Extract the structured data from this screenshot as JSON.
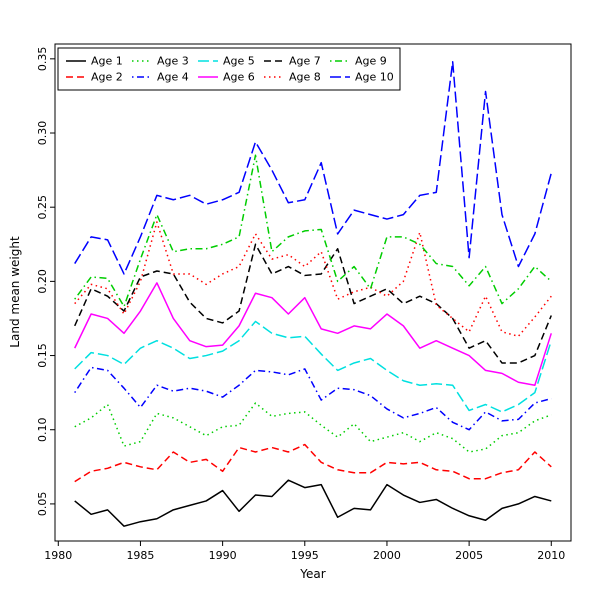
{
  "chart_data": {
    "type": "line",
    "title": "",
    "xlabel": "Year",
    "ylabel": "Land mean weight",
    "xlim": [
      1979.8,
      2011.2
    ],
    "ylim": [
      0.025,
      0.36
    ],
    "x_ticks": [
      1980,
      1985,
      1990,
      1995,
      2000,
      2005,
      2010
    ],
    "y_ticks": [
      0.05,
      0.1,
      0.15,
      0.2,
      0.25,
      0.3,
      0.35
    ],
    "grid": false,
    "legend": {
      "position": "top-left",
      "columns": 5
    },
    "x": [
      1981,
      1982,
      1983,
      1984,
      1985,
      1986,
      1987,
      1988,
      1989,
      1990,
      1991,
      1992,
      1993,
      1994,
      1995,
      1996,
      1997,
      1998,
      1999,
      2000,
      2001,
      2002,
      2003,
      2004,
      2005,
      2006,
      2007,
      2008,
      2009,
      2010
    ],
    "series": [
      {
        "name": "Age 1",
        "color": "#000000",
        "dash": "solid",
        "values": [
          0.052,
          0.043,
          0.046,
          0.035,
          0.038,
          0.04,
          0.046,
          0.049,
          0.052,
          0.059,
          0.045,
          0.056,
          0.055,
          0.066,
          0.061,
          0.063,
          0.041,
          0.047,
          0.046,
          0.063,
          0.056,
          0.051,
          0.053,
          0.047,
          0.042,
          0.039,
          0.047,
          0.05,
          0.055,
          0.052
        ]
      },
      {
        "name": "Age 2",
        "color": "#ff0000",
        "dash": "dashed",
        "values": [
          0.065,
          0.072,
          0.074,
          0.078,
          0.075,
          0.073,
          0.085,
          0.078,
          0.08,
          0.072,
          0.088,
          0.085,
          0.088,
          0.085,
          0.09,
          0.078,
          0.073,
          0.071,
          0.071,
          0.078,
          0.077,
          0.078,
          0.073,
          0.072,
          0.067,
          0.067,
          0.071,
          0.073,
          0.085,
          0.075
        ]
      },
      {
        "name": "Age 3",
        "color": "#00cd00",
        "dash": "dotted",
        "values": [
          0.102,
          0.108,
          0.117,
          0.089,
          0.092,
          0.111,
          0.108,
          0.102,
          0.096,
          0.102,
          0.103,
          0.118,
          0.109,
          0.111,
          0.112,
          0.103,
          0.095,
          0.104,
          0.092,
          0.095,
          0.098,
          0.092,
          0.098,
          0.094,
          0.085,
          0.087,
          0.096,
          0.098,
          0.106,
          0.11
        ]
      },
      {
        "name": "Age 4",
        "color": "#0000ff",
        "dash": "dotdash",
        "values": [
          0.125,
          0.142,
          0.14,
          0.128,
          0.115,
          0.13,
          0.126,
          0.128,
          0.126,
          0.122,
          0.13,
          0.14,
          0.139,
          0.137,
          0.141,
          0.12,
          0.128,
          0.127,
          0.123,
          0.114,
          0.108,
          0.111,
          0.115,
          0.105,
          0.1,
          0.112,
          0.106,
          0.107,
          0.118,
          0.121
        ]
      },
      {
        "name": "Age 5",
        "color": "#00e0e0",
        "dash": "longdash",
        "values": [
          0.141,
          0.152,
          0.15,
          0.144,
          0.155,
          0.16,
          0.155,
          0.148,
          0.15,
          0.153,
          0.16,
          0.173,
          0.165,
          0.162,
          0.163,
          0.151,
          0.14,
          0.145,
          0.148,
          0.14,
          0.133,
          0.13,
          0.131,
          0.13,
          0.113,
          0.117,
          0.112,
          0.117,
          0.125,
          0.16
        ]
      },
      {
        "name": "Age 6",
        "color": "#ff00ff",
        "dash": "solid",
        "values": [
          0.155,
          0.178,
          0.175,
          0.165,
          0.18,
          0.199,
          0.175,
          0.16,
          0.156,
          0.157,
          0.17,
          0.192,
          0.189,
          0.178,
          0.189,
          0.168,
          0.165,
          0.17,
          0.168,
          0.178,
          0.17,
          0.155,
          0.16,
          0.155,
          0.15,
          0.14,
          0.138,
          0.132,
          0.13,
          0.165
        ]
      },
      {
        "name": "Age 7",
        "color": "#000000",
        "dash": "dashed",
        "values": [
          0.17,
          0.195,
          0.19,
          0.18,
          0.203,
          0.207,
          0.205,
          0.186,
          0.175,
          0.172,
          0.18,
          0.225,
          0.205,
          0.21,
          0.204,
          0.205,
          0.222,
          0.185,
          0.19,
          0.195,
          0.185,
          0.19,
          0.185,
          0.175,
          0.155,
          0.16,
          0.145,
          0.145,
          0.15,
          0.177
        ]
      },
      {
        "name": "Age 8",
        "color": "#ff0000",
        "dash": "dotted",
        "values": [
          0.185,
          0.198,
          0.195,
          0.178,
          0.2,
          0.24,
          0.205,
          0.205,
          0.198,
          0.205,
          0.21,
          0.232,
          0.215,
          0.218,
          0.21,
          0.22,
          0.188,
          0.193,
          0.196,
          0.19,
          0.2,
          0.233,
          0.184,
          0.175,
          0.166,
          0.19,
          0.166,
          0.163,
          0.176,
          0.19
        ]
      },
      {
        "name": "Age 9",
        "color": "#00cd00",
        "dash": "dotdash",
        "values": [
          0.188,
          0.203,
          0.202,
          0.183,
          0.215,
          0.245,
          0.22,
          0.222,
          0.222,
          0.225,
          0.23,
          0.285,
          0.22,
          0.23,
          0.234,
          0.235,
          0.2,
          0.21,
          0.195,
          0.23,
          0.23,
          0.225,
          0.212,
          0.21,
          0.197,
          0.21,
          0.185,
          0.195,
          0.21,
          0.2
        ]
      },
      {
        "name": "Age 10",
        "color": "#0000ff",
        "dash": "longdash",
        "values": [
          0.212,
          0.23,
          0.228,
          0.205,
          0.23,
          0.258,
          0.255,
          0.258,
          0.252,
          0.255,
          0.26,
          0.294,
          0.275,
          0.253,
          0.255,
          0.28,
          0.232,
          0.248,
          0.245,
          0.242,
          0.245,
          0.258,
          0.26,
          0.348,
          0.216,
          0.328,
          0.245,
          0.21,
          0.232,
          0.273
        ]
      }
    ]
  }
}
